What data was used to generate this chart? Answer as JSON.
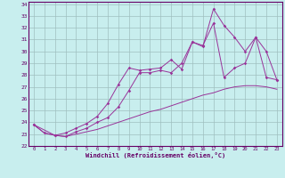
{
  "xlabel": "Windchill (Refroidissement éolien,°C)",
  "bg_color": "#c8eeee",
  "grid_color": "#9fbfbf",
  "line_color": "#993399",
  "border_color": "#660066",
  "xmin": 0,
  "xmax": 23,
  "ymin": 22,
  "ymax": 34,
  "line1_x": [
    0,
    1,
    2,
    3,
    4,
    5,
    6,
    7,
    8,
    9,
    10,
    11,
    12,
    13,
    14,
    15,
    16,
    17,
    18,
    19,
    20,
    21,
    22,
    23
  ],
  "line1_y": [
    23.8,
    23.1,
    22.9,
    22.8,
    23.0,
    23.2,
    23.4,
    23.7,
    24.0,
    24.3,
    24.6,
    24.9,
    25.1,
    25.4,
    25.7,
    26.0,
    26.3,
    26.5,
    26.8,
    27.0,
    27.1,
    27.1,
    27.0,
    26.8
  ],
  "line2_x": [
    0,
    1,
    2,
    3,
    4,
    5,
    6,
    7,
    8,
    9,
    10,
    11,
    12,
    13,
    14,
    15,
    16,
    17,
    18,
    19,
    20,
    21,
    22,
    23
  ],
  "line2_y": [
    23.8,
    23.1,
    22.9,
    23.1,
    23.5,
    23.9,
    24.5,
    25.6,
    27.2,
    28.6,
    28.4,
    28.5,
    28.6,
    29.3,
    28.5,
    30.8,
    30.5,
    32.4,
    27.8,
    28.6,
    29.0,
    31.2,
    30.0,
    27.6
  ],
  "line3_x": [
    0,
    2,
    3,
    4,
    5,
    6,
    7,
    8,
    9,
    10,
    11,
    12,
    13,
    14,
    15,
    16,
    17,
    18,
    19,
    20,
    21,
    22,
    23
  ],
  "line3_y": [
    23.8,
    22.9,
    22.8,
    23.2,
    23.5,
    24.0,
    24.4,
    25.3,
    26.7,
    28.2,
    28.2,
    28.4,
    28.2,
    29.0,
    30.8,
    30.4,
    33.6,
    32.2,
    31.2,
    30.0,
    31.2,
    27.8,
    27.6
  ]
}
